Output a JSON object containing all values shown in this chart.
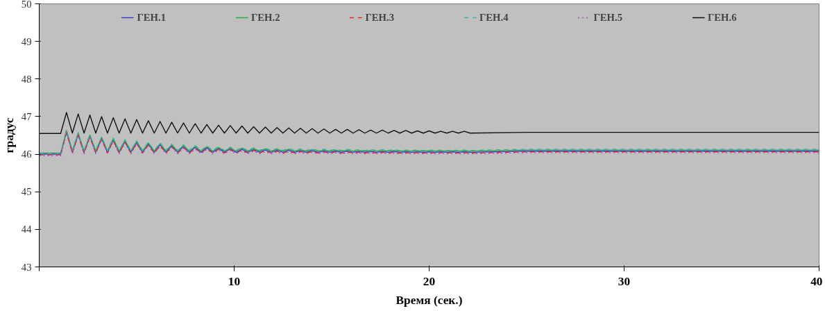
{
  "chart_data": {
    "type": "line",
    "xlabel": "Время (сек.)",
    "ylabel": "градус",
    "xlim": [
      0,
      40
    ],
    "ylim": [
      43,
      50
    ],
    "xticks": [
      {
        "value": 0,
        "label": null
      },
      10,
      20,
      30,
      40
    ],
    "yticks": [
      43,
      44,
      45,
      46,
      47,
      48,
      49,
      50
    ],
    "grid": false,
    "legend": "top",
    "marker": "none",
    "x": [
      0,
      1.1,
      1.4,
      1.7,
      2.0,
      2.3,
      2.6,
      2.9,
      3.2,
      3.5,
      3.8,
      4.1,
      4.4,
      4.7,
      5.0,
      5.3,
      5.6,
      5.9,
      6.2,
      6.5,
      6.8,
      7.1,
      7.4,
      7.7,
      8.0,
      8.3,
      8.6,
      8.9,
      9.2,
      9.5,
      9.8,
      10.1,
      10.4,
      10.7,
      11.0,
      11.3,
      11.6,
      11.9,
      12.2,
      12.5,
      12.8,
      13.1,
      13.4,
      13.7,
      14.0,
      14.3,
      14.6,
      14.9,
      15.2,
      15.5,
      15.8,
      16.1,
      16.4,
      16.7,
      17.0,
      17.3,
      17.6,
      17.9,
      18.2,
      18.5,
      18.8,
      19.1,
      19.4,
      19.7,
      20.0,
      20.3,
      20.6,
      20.9,
      21.2,
      21.5,
      21.8,
      22.1,
      25,
      30,
      35,
      40
    ],
    "series": [
      {
        "name": "ГЕН.1",
        "color": "#3a3fd0",
        "line_style": "solid",
        "values": [
          46.0,
          46.0,
          46.6,
          46.05,
          46.53,
          46.05,
          46.48,
          46.05,
          46.42,
          46.05,
          46.38,
          46.05,
          46.34,
          46.05,
          46.31,
          46.05,
          46.27,
          46.05,
          46.25,
          46.05,
          46.22,
          46.05,
          46.2,
          46.05,
          46.18,
          46.05,
          46.17,
          46.05,
          46.15,
          46.05,
          46.14,
          46.05,
          46.13,
          46.05,
          46.12,
          46.05,
          46.11,
          46.05,
          46.1,
          46.05,
          46.1,
          46.05,
          46.09,
          46.05,
          46.09,
          46.05,
          46.08,
          46.05,
          46.08,
          46.05,
          46.08,
          46.05,
          46.07,
          46.05,
          46.07,
          46.05,
          46.07,
          46.05,
          46.07,
          46.05,
          46.06,
          46.05,
          46.06,
          46.05,
          46.06,
          46.05,
          46.06,
          46.05,
          46.06,
          46.05,
          46.06,
          46.05,
          46.08,
          46.08,
          46.08,
          46.08
        ]
      },
      {
        "name": "ГЕН.2",
        "color": "#2aa84a",
        "line_style": "solid",
        "values": [
          46.03,
          46.03,
          46.63,
          46.08,
          46.56,
          46.08,
          46.51,
          46.08,
          46.45,
          46.08,
          46.41,
          46.08,
          46.37,
          46.08,
          46.34,
          46.08,
          46.3,
          46.08,
          46.28,
          46.08,
          46.25,
          46.08,
          46.23,
          46.08,
          46.21,
          46.08,
          46.2,
          46.08,
          46.18,
          46.08,
          46.17,
          46.08,
          46.16,
          46.08,
          46.15,
          46.08,
          46.14,
          46.08,
          46.13,
          46.08,
          46.13,
          46.08,
          46.12,
          46.08,
          46.12,
          46.08,
          46.11,
          46.08,
          46.11,
          46.08,
          46.11,
          46.08,
          46.1,
          46.08,
          46.1,
          46.08,
          46.1,
          46.08,
          46.1,
          46.08,
          46.09,
          46.08,
          46.09,
          46.08,
          46.09,
          46.08,
          46.09,
          46.08,
          46.09,
          46.08,
          46.09,
          46.08,
          46.11,
          46.11,
          46.11,
          46.11
        ]
      },
      {
        "name": "ГЕН.3",
        "color": "#e02828",
        "line_style": "dashed",
        "values": [
          45.98,
          45.98,
          46.58,
          46.03,
          46.51,
          46.03,
          46.46,
          46.03,
          46.4,
          46.03,
          46.36,
          46.03,
          46.32,
          46.03,
          46.29,
          46.03,
          46.25,
          46.03,
          46.23,
          46.03,
          46.2,
          46.03,
          46.18,
          46.03,
          46.16,
          46.03,
          46.15,
          46.03,
          46.13,
          46.03,
          46.12,
          46.03,
          46.11,
          46.03,
          46.1,
          46.03,
          46.09,
          46.03,
          46.08,
          46.03,
          46.08,
          46.03,
          46.07,
          46.03,
          46.07,
          46.03,
          46.06,
          46.03,
          46.06,
          46.03,
          46.06,
          46.03,
          46.05,
          46.03,
          46.05,
          46.03,
          46.05,
          46.03,
          46.05,
          46.03,
          46.04,
          46.03,
          46.04,
          46.03,
          46.04,
          46.03,
          46.04,
          46.03,
          46.04,
          46.03,
          46.04,
          46.03,
          46.06,
          46.06,
          46.06,
          46.06
        ]
      },
      {
        "name": "ГЕН.4",
        "color": "#40b0a0",
        "line_style": "dashed",
        "values": [
          46.02,
          46.02,
          46.65,
          46.1,
          46.58,
          46.1,
          46.53,
          46.1,
          46.47,
          46.1,
          46.43,
          46.1,
          46.39,
          46.1,
          46.36,
          46.1,
          46.32,
          46.1,
          46.3,
          46.1,
          46.27,
          46.1,
          46.25,
          46.1,
          46.23,
          46.1,
          46.22,
          46.1,
          46.2,
          46.1,
          46.19,
          46.1,
          46.18,
          46.1,
          46.17,
          46.1,
          46.16,
          46.1,
          46.15,
          46.1,
          46.15,
          46.1,
          46.14,
          46.1,
          46.14,
          46.1,
          46.13,
          46.1,
          46.13,
          46.1,
          46.13,
          46.1,
          46.12,
          46.1,
          46.12,
          46.1,
          46.12,
          46.1,
          46.12,
          46.1,
          46.11,
          46.1,
          46.11,
          46.1,
          46.11,
          46.1,
          46.11,
          46.1,
          46.11,
          46.1,
          46.11,
          46.1,
          46.13,
          46.13,
          46.13,
          46.13
        ]
      },
      {
        "name": "ГЕН.5",
        "color": "#b040c0",
        "line_style": "dotted",
        "values": [
          45.96,
          45.96,
          46.56,
          46.01,
          46.49,
          46.01,
          46.44,
          46.01,
          46.38,
          46.01,
          46.34,
          46.01,
          46.3,
          46.01,
          46.27,
          46.01,
          46.23,
          46.01,
          46.21,
          46.01,
          46.18,
          46.01,
          46.16,
          46.01,
          46.14,
          46.01,
          46.13,
          46.01,
          46.11,
          46.01,
          46.1,
          46.01,
          46.09,
          46.01,
          46.08,
          46.01,
          46.07,
          46.01,
          46.06,
          46.01,
          46.06,
          46.01,
          46.05,
          46.01,
          46.05,
          46.01,
          46.04,
          46.01,
          46.04,
          46.01,
          46.04,
          46.01,
          46.03,
          46.01,
          46.03,
          46.01,
          46.03,
          46.01,
          46.03,
          46.01,
          46.02,
          46.01,
          46.02,
          46.01,
          46.02,
          46.01,
          46.02,
          46.01,
          46.02,
          46.01,
          46.02,
          46.01,
          46.04,
          46.04,
          46.04,
          46.04
        ]
      },
      {
        "name": "ГЕН.6",
        "color": "#111111",
        "line_style": "solid",
        "values": [
          46.55,
          46.55,
          47.11,
          46.56,
          47.07,
          46.56,
          47.04,
          46.56,
          47.0,
          46.56,
          46.97,
          46.56,
          46.94,
          46.56,
          46.92,
          46.56,
          46.89,
          46.56,
          46.87,
          46.56,
          46.85,
          46.56,
          46.83,
          46.56,
          46.81,
          46.56,
          46.79,
          46.56,
          46.77,
          46.56,
          46.76,
          46.56,
          46.75,
          46.56,
          46.73,
          46.56,
          46.72,
          46.56,
          46.71,
          46.56,
          46.7,
          46.56,
          46.69,
          46.56,
          46.68,
          46.56,
          46.67,
          46.56,
          46.66,
          46.56,
          46.66,
          46.56,
          46.65,
          46.56,
          46.64,
          46.56,
          46.64,
          46.56,
          46.63,
          46.56,
          46.63,
          46.56,
          46.62,
          46.56,
          46.62,
          46.56,
          46.61,
          46.56,
          46.61,
          46.56,
          46.61,
          46.56,
          46.58,
          46.58,
          46.58,
          46.58
        ]
      }
    ]
  }
}
